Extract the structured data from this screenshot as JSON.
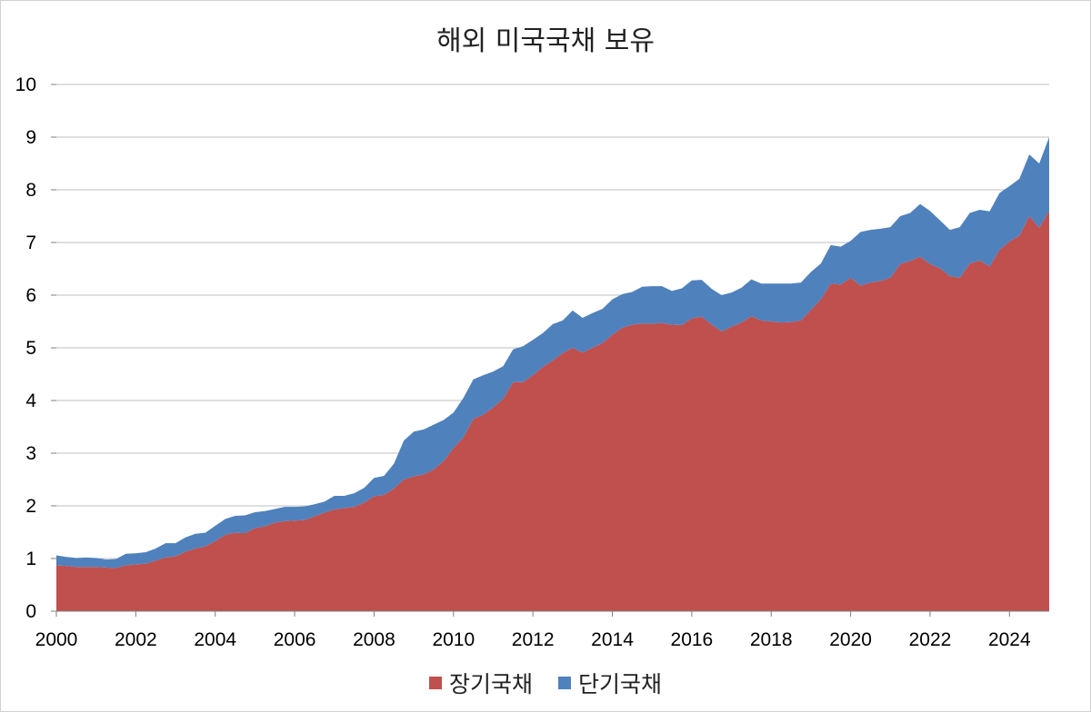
{
  "chart_data": {
    "type": "area",
    "stacked": true,
    "title": "해외 미국국채 보유",
    "xlabel": "",
    "ylabel": "",
    "xlim": [
      2000,
      2025
    ],
    "ylim": [
      0,
      10
    ],
    "x_ticks": [
      "2000",
      "2002",
      "2004",
      "2006",
      "2008",
      "2010",
      "2012",
      "2014",
      "2016",
      "2018",
      "2020",
      "2022",
      "2024"
    ],
    "y_ticks": [
      "0",
      "1",
      "2",
      "3",
      "4",
      "5",
      "6",
      "7",
      "8",
      "9",
      "10"
    ],
    "grid": "horizontal",
    "legend_position": "bottom",
    "x": [
      2000.0,
      2000.25,
      2000.5,
      2000.75,
      2001.0,
      2001.25,
      2001.5,
      2001.75,
      2002.0,
      2002.25,
      2002.5,
      2002.75,
      2003.0,
      2003.25,
      2003.5,
      2003.75,
      2004.0,
      2004.25,
      2004.5,
      2004.75,
      2005.0,
      2005.25,
      2005.5,
      2005.75,
      2006.0,
      2006.25,
      2006.5,
      2006.75,
      2007.0,
      2007.25,
      2007.5,
      2007.75,
      2008.0,
      2008.25,
      2008.5,
      2008.75,
      2009.0,
      2009.25,
      2009.5,
      2009.75,
      2010.0,
      2010.25,
      2010.5,
      2010.75,
      2011.0,
      2011.25,
      2011.5,
      2011.75,
      2012.0,
      2012.25,
      2012.5,
      2012.75,
      2013.0,
      2013.25,
      2013.5,
      2013.75,
      2014.0,
      2014.25,
      2014.5,
      2014.75,
      2015.0,
      2015.25,
      2015.5,
      2015.75,
      2016.0,
      2016.25,
      2016.5,
      2016.75,
      2017.0,
      2017.25,
      2017.5,
      2017.75,
      2018.0,
      2018.25,
      2018.5,
      2018.75,
      2019.0,
      2019.25,
      2019.5,
      2019.75,
      2020.0,
      2020.25,
      2020.5,
      2020.75,
      2021.0,
      2021.25,
      2021.5,
      2021.75,
      2022.0,
      2022.25,
      2022.5,
      2022.75,
      2023.0,
      2023.25,
      2023.5,
      2023.75,
      2024.0,
      2024.25,
      2024.5,
      2024.75,
      2025.0
    ],
    "series": [
      {
        "name": "장기국채",
        "color": "#c0504d",
        "values": [
          0.87,
          0.86,
          0.84,
          0.84,
          0.84,
          0.83,
          0.82,
          0.87,
          0.89,
          0.9,
          0.96,
          1.02,
          1.04,
          1.13,
          1.19,
          1.23,
          1.33,
          1.45,
          1.49,
          1.48,
          1.58,
          1.61,
          1.68,
          1.71,
          1.72,
          1.73,
          1.8,
          1.87,
          1.93,
          1.96,
          1.98,
          2.06,
          2.18,
          2.21,
          2.33,
          2.5,
          2.56,
          2.6,
          2.69,
          2.85,
          3.1,
          3.3,
          3.65,
          3.73,
          3.87,
          4.03,
          4.35,
          4.35,
          4.48,
          4.64,
          4.76,
          4.9,
          5.0,
          4.91,
          5.0,
          5.09,
          5.25,
          5.38,
          5.44,
          5.46,
          5.46,
          5.47,
          5.44,
          5.43,
          5.56,
          5.59,
          5.44,
          5.31,
          5.4,
          5.48,
          5.6,
          5.52,
          5.5,
          5.48,
          5.49,
          5.52,
          5.72,
          5.92,
          6.22,
          6.2,
          6.33,
          6.18,
          6.24,
          6.27,
          6.33,
          6.59,
          6.65,
          6.73,
          6.59,
          6.51,
          6.36,
          6.33,
          6.6,
          6.66,
          6.54,
          6.86,
          7.02,
          7.13,
          7.5,
          7.28,
          7.6
        ]
      },
      {
        "name": "단기국채",
        "color": "#4f81bd",
        "values": [
          0.19,
          0.17,
          0.17,
          0.18,
          0.17,
          0.15,
          0.17,
          0.22,
          0.21,
          0.22,
          0.23,
          0.27,
          0.25,
          0.27,
          0.28,
          0.26,
          0.29,
          0.3,
          0.32,
          0.34,
          0.3,
          0.29,
          0.26,
          0.27,
          0.26,
          0.26,
          0.23,
          0.21,
          0.26,
          0.23,
          0.26,
          0.28,
          0.35,
          0.36,
          0.47,
          0.74,
          0.85,
          0.85,
          0.85,
          0.78,
          0.67,
          0.75,
          0.75,
          0.75,
          0.68,
          0.62,
          0.62,
          0.68,
          0.67,
          0.64,
          0.69,
          0.62,
          0.71,
          0.66,
          0.66,
          0.65,
          0.67,
          0.64,
          0.62,
          0.7,
          0.71,
          0.7,
          0.64,
          0.7,
          0.72,
          0.7,
          0.68,
          0.69,
          0.65,
          0.66,
          0.7,
          0.7,
          0.72,
          0.74,
          0.73,
          0.72,
          0.72,
          0.68,
          0.73,
          0.72,
          0.7,
          1.02,
          1.0,
          0.99,
          0.96,
          0.91,
          0.91,
          1.0,
          1.01,
          0.91,
          0.88,
          0.96,
          0.96,
          0.96,
          1.05,
          1.08,
          1.05,
          1.08,
          1.17,
          1.22,
          1.4
        ]
      }
    ]
  }
}
